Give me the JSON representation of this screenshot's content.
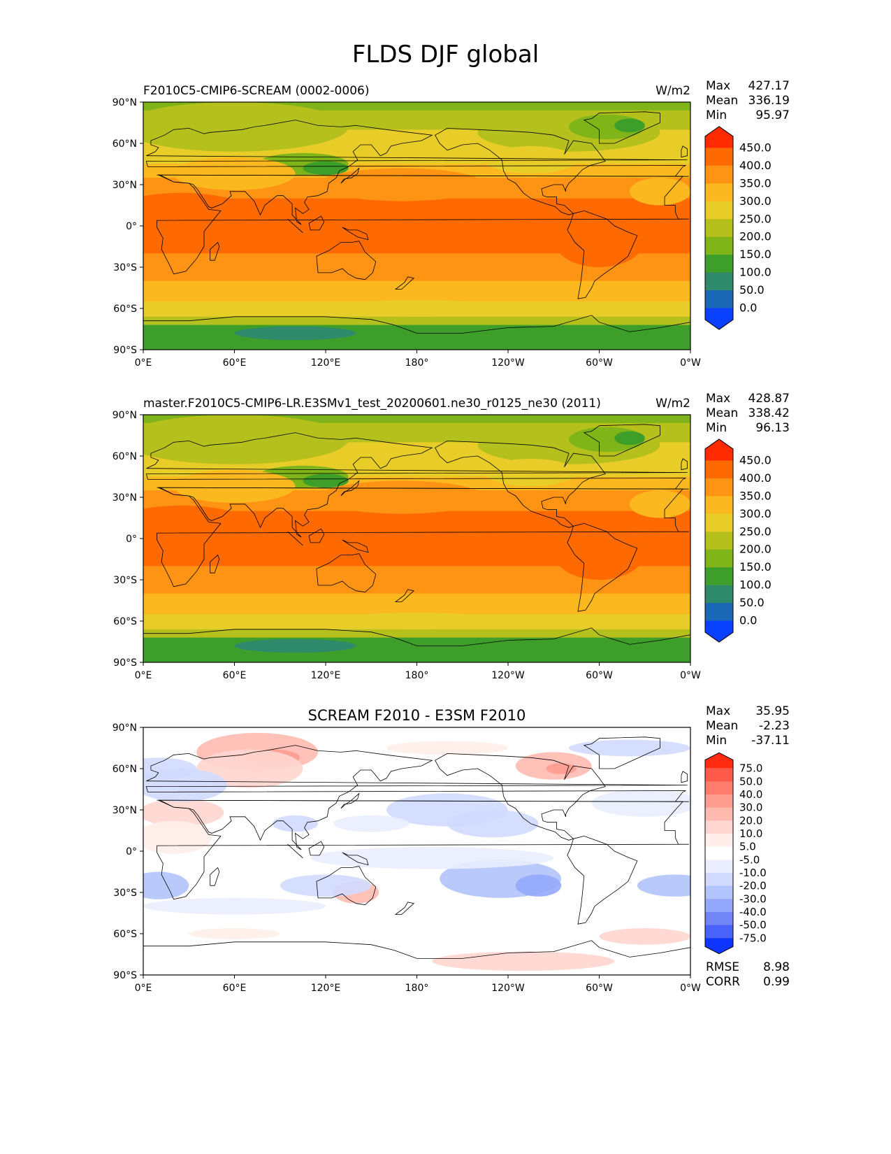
{
  "figure_title": "FLDS DJF global",
  "chart_data": [
    {
      "type": "heatmap",
      "subtype": "global map (Plate Carree)",
      "title_left": "F2010C5-CMIP6-SCREAM (0002-0006)",
      "title_right": "W/m2",
      "stats": [
        {
          "label": "Max",
          "value": "427.17"
        },
        {
          "label": "Mean",
          "value": "336.19"
        },
        {
          "label": "Min",
          "value": "95.97"
        }
      ],
      "colorbar_levels": [
        "450.0",
        "400.0",
        "350.0",
        "300.0",
        "250.0",
        "200.0",
        "150.0",
        "100.0",
        "50.0",
        "0.0"
      ],
      "colors": [
        "#ff2a00",
        "#ff6a00",
        "#ff9314",
        "#fcb91f",
        "#e8cd28",
        "#b6c01c",
        "#7fb519",
        "#3d9e2a",
        "#2f8a6b",
        "#1a68b5",
        "#0a40ff"
      ],
      "xticks": [
        "0°E",
        "60°E",
        "120°E",
        "180°",
        "120°W",
        "60°W",
        "0°W"
      ],
      "yticks": [
        "90°N",
        "60°N",
        "30°N",
        "0°",
        "30°S",
        "60°S",
        "90°S"
      ]
    },
    {
      "type": "heatmap",
      "subtype": "global map (Plate Carree)",
      "title_left": "master.F2010C5-CMIP6-LR.E3SMv1_test_20200601.ne30_r0125_ne30 (2011)",
      "title_right": "W/m2",
      "stats": [
        {
          "label": "Max",
          "value": "428.87"
        },
        {
          "label": "Mean",
          "value": "338.42"
        },
        {
          "label": "Min",
          "value": "96.13"
        }
      ],
      "colorbar_levels": [
        "450.0",
        "400.0",
        "350.0",
        "300.0",
        "250.0",
        "200.0",
        "150.0",
        "100.0",
        "50.0",
        "0.0"
      ],
      "colors": [
        "#ff2a00",
        "#ff6a00",
        "#ff9314",
        "#fcb91f",
        "#e8cd28",
        "#b6c01c",
        "#7fb519",
        "#3d9e2a",
        "#2f8a6b",
        "#1a68b5",
        "#0a40ff"
      ],
      "xticks": [
        "0°E",
        "60°E",
        "120°E",
        "180°",
        "120°W",
        "60°W",
        "0°W"
      ],
      "yticks": [
        "90°N",
        "60°N",
        "30°N",
        "0°",
        "30°S",
        "60°S",
        "90°S"
      ]
    },
    {
      "type": "heatmap",
      "subtype": "global difference map (Plate Carree)",
      "title_center": "SCREAM F2010 - E3SM F2010",
      "stats": [
        {
          "label": "Max",
          "value": "35.95"
        },
        {
          "label": "Mean",
          "value": "-2.23"
        },
        {
          "label": "Min",
          "value": "-37.11"
        }
      ],
      "colorbar_levels": [
        "75.0",
        "50.0",
        "40.0",
        "30.0",
        "20.0",
        "10.0",
        "5.0",
        "-5.0",
        "-10.0",
        "-20.0",
        "-30.0",
        "-40.0",
        "-50.0",
        "-75.0"
      ],
      "colors": [
        "#ff2a10",
        "#fe5a4a",
        "#fe7c6c",
        "#fe9c90",
        "#ffbab0",
        "#ffd6d0",
        "#ffeeea",
        "#ffffff",
        "#eaeefe",
        "#d0daff",
        "#b3c3fb",
        "#93a8fa",
        "#7286f8",
        "#4a63fb",
        "#0f36ff"
      ],
      "xticks": [
        "0°E",
        "60°E",
        "120°E",
        "180°",
        "120°W",
        "60°W",
        "0°W"
      ],
      "yticks": [
        "90°N",
        "60°N",
        "30°N",
        "0°",
        "30°S",
        "60°S",
        "90°S"
      ],
      "summary": [
        {
          "label": "RMSE",
          "value": "8.98"
        },
        {
          "label": "CORR",
          "value": "0.99"
        }
      ]
    }
  ]
}
